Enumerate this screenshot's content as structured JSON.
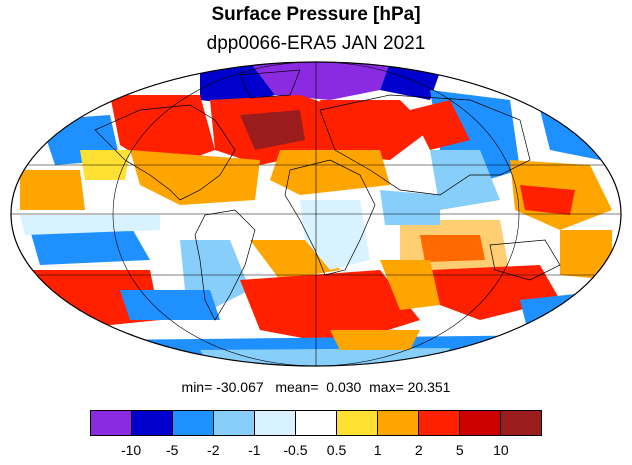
{
  "title": "Surface Pressure [hPa]",
  "subtitle": "dpp0066-ERA5  JAN 2021",
  "stats": {
    "min_label": "min=",
    "min": "-30.067",
    "mean_label": "mean=",
    "mean": "0.030",
    "max_label": "max=",
    "max": "20.351"
  },
  "colorbar": {
    "colors": [
      "#8a2be2",
      "#0000cd",
      "#1e90ff",
      "#87cefa",
      "#d8f2ff",
      "#ffffff",
      "#ffe033",
      "#ffa500",
      "#ff2000",
      "#cd0000",
      "#9b1c1c"
    ],
    "tick_labels": [
      "-10",
      "-5",
      "-2",
      "-1",
      "-0.5",
      "0.5",
      "1",
      "2",
      "5",
      "10"
    ]
  },
  "map": {
    "projection": "mollweide",
    "ocean_base_color": "#ffffff",
    "gridlines": true
  }
}
